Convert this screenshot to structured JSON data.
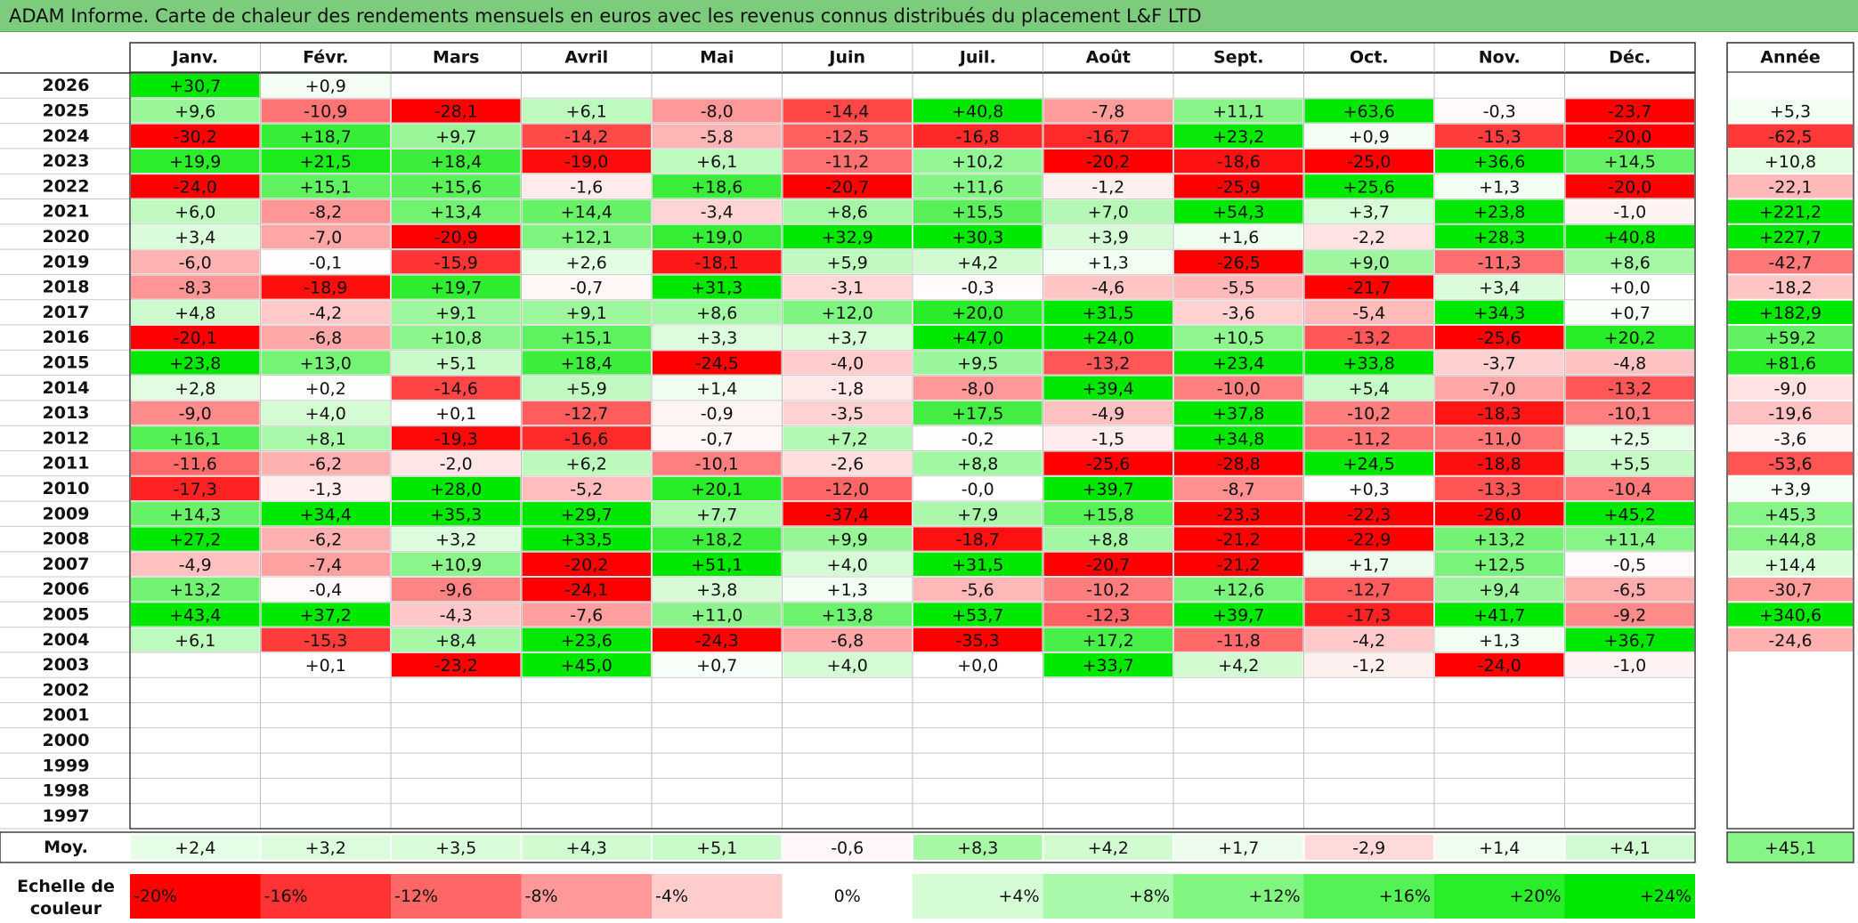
{
  "title": "ADAM Informe. Carte de chaleur des rendements mensuels en euros avec les revenus connus distribués du placement L&F LTD",
  "chart_data": {
    "type": "heatmap",
    "title": "ADAM Informe. Carte de chaleur des rendements mensuels en euros avec les revenus connus distribués du placement L&F LTD",
    "columns": [
      "Janv.",
      "Févr.",
      "Mars",
      "Avril",
      "Mai",
      "Juin",
      "Juil.",
      "Août",
      "Sept.",
      "Oct.",
      "Nov.",
      "Déc."
    ],
    "annual_header": "Année",
    "rows": [
      {
        "year": "2026",
        "values": [
          "+30,7",
          "+0,9",
          "",
          "",
          "",
          "",
          "",
          "",
          "",
          "",
          "",
          ""
        ],
        "annual": ""
      },
      {
        "year": "2025",
        "values": [
          "+9,6",
          "-10,9",
          "-28,1",
          "+6,1",
          "-8,0",
          "-14,4",
          "+40,8",
          "-7,8",
          "+11,1",
          "+63,6",
          "-0,3",
          "-23,7"
        ],
        "annual": "+5,3"
      },
      {
        "year": "2024",
        "values": [
          "-30,2",
          "+18,7",
          "+9,7",
          "-14,2",
          "-5,8",
          "-12,5",
          "-16,8",
          "-16,7",
          "+23,2",
          "+0,9",
          "-15,3",
          "-20,0"
        ],
        "annual": "-62,5"
      },
      {
        "year": "2023",
        "values": [
          "+19,9",
          "+21,5",
          "+18,4",
          "-19,0",
          "+6,1",
          "-11,2",
          "+10,2",
          "-20,2",
          "-18,6",
          "-25,0",
          "+36,6",
          "+14,5"
        ],
        "annual": "+10,8"
      },
      {
        "year": "2022",
        "values": [
          "-24,0",
          "+15,1",
          "+15,6",
          "-1,6",
          "+18,6",
          "-20,7",
          "+11,6",
          "-1,2",
          "-25,9",
          "+25,6",
          "+1,3",
          "-20,0"
        ],
        "annual": "-22,1"
      },
      {
        "year": "2021",
        "values": [
          "+6,0",
          "-8,2",
          "+13,4",
          "+14,4",
          "-3,4",
          "+8,6",
          "+15,5",
          "+7,0",
          "+54,3",
          "+3,7",
          "+23,8",
          "-1,0"
        ],
        "annual": "+221,2"
      },
      {
        "year": "2020",
        "values": [
          "+3,4",
          "-7,0",
          "-20,9",
          "+12,1",
          "+19,0",
          "+32,9",
          "+30,3",
          "+3,9",
          "+1,6",
          "-2,2",
          "+28,3",
          "+40,8"
        ],
        "annual": "+227,7"
      },
      {
        "year": "2019",
        "values": [
          "-6,0",
          "-0,1",
          "-15,9",
          "+2,6",
          "-18,1",
          "+5,9",
          "+4,2",
          "+1,3",
          "-26,5",
          "+9,0",
          "-11,3",
          "+8,6"
        ],
        "annual": "-42,7"
      },
      {
        "year": "2018",
        "values": [
          "-8,3",
          "-18,9",
          "+19,7",
          "-0,7",
          "+31,3",
          "-3,1",
          "-0,3",
          "-4,6",
          "-5,5",
          "-21,7",
          "+3,4",
          "+0,0"
        ],
        "annual": "-18,2"
      },
      {
        "year": "2017",
        "values": [
          "+4,8",
          "-4,2",
          "+9,1",
          "+9,1",
          "+8,6",
          "+12,0",
          "+20,0",
          "+31,5",
          "-3,6",
          "-5,4",
          "+34,3",
          "+0,7"
        ],
        "annual": "+182,9"
      },
      {
        "year": "2016",
        "values": [
          "-20,1",
          "-6,8",
          "+10,8",
          "+15,1",
          "+3,3",
          "+3,7",
          "+47,0",
          "+24,0",
          "+10,5",
          "-13,2",
          "-25,6",
          "+20,2"
        ],
        "annual": "+59,2"
      },
      {
        "year": "2015",
        "values": [
          "+23,8",
          "+13,0",
          "+5,1",
          "+18,4",
          "-24,5",
          "-4,0",
          "+9,5",
          "-13,2",
          "+23,4",
          "+33,8",
          "-3,7",
          "-4,8"
        ],
        "annual": "+81,6"
      },
      {
        "year": "2014",
        "values": [
          "+2,8",
          "+0,2",
          "-14,6",
          "+5,9",
          "+1,4",
          "-1,8",
          "-8,0",
          "+39,4",
          "-10,0",
          "+5,4",
          "-7,0",
          "-13,2"
        ],
        "annual": "-9,0"
      },
      {
        "year": "2013",
        "values": [
          "-9,0",
          "+4,0",
          "+0,1",
          "-12,7",
          "-0,9",
          "-3,5",
          "+17,5",
          "-4,9",
          "+37,8",
          "-10,2",
          "-18,3",
          "-10,1"
        ],
        "annual": "-19,6"
      },
      {
        "year": "2012",
        "values": [
          "+16,1",
          "+8,1",
          "-19,3",
          "-16,6",
          "-0,7",
          "+7,2",
          "-0,2",
          "-1,5",
          "+34,8",
          "-11,2",
          "-11,0",
          "+2,5"
        ],
        "annual": "-3,6"
      },
      {
        "year": "2011",
        "values": [
          "-11,6",
          "-6,2",
          "-2,0",
          "+6,2",
          "-10,1",
          "-2,6",
          "+8,8",
          "-25,6",
          "-28,8",
          "+24,5",
          "-18,8",
          "+5,5"
        ],
        "annual": "-53,6"
      },
      {
        "year": "2010",
        "values": [
          "-17,3",
          "-1,3",
          "+28,0",
          "-5,2",
          "+20,1",
          "-12,0",
          "-0,0",
          "+39,7",
          "-8,7",
          "+0,3",
          "-13,3",
          "-10,4"
        ],
        "annual": "+3,9"
      },
      {
        "year": "2009",
        "values": [
          "+14,3",
          "+34,4",
          "+35,3",
          "+29,7",
          "+7,7",
          "-37,4",
          "+7,9",
          "+15,8",
          "-23,3",
          "-22,3",
          "-26,0",
          "+45,2"
        ],
        "annual": "+45,3"
      },
      {
        "year": "2008",
        "values": [
          "+27,2",
          "-6,2",
          "+3,2",
          "+33,5",
          "+18,2",
          "+9,9",
          "-18,7",
          "+8,8",
          "-21,2",
          "-22,9",
          "+13,2",
          "+11,4"
        ],
        "annual": "+44,8"
      },
      {
        "year": "2007",
        "values": [
          "-4,9",
          "-7,4",
          "+10,9",
          "-20,2",
          "+51,1",
          "+4,0",
          "+31,5",
          "-20,7",
          "-21,2",
          "+1,7",
          "+12,5",
          "-0,5"
        ],
        "annual": "+14,4"
      },
      {
        "year": "2006",
        "values": [
          "+13,2",
          "-0,4",
          "-9,6",
          "-24,1",
          "+3,8",
          "+1,3",
          "-5,6",
          "-10,2",
          "+12,6",
          "-12,7",
          "+9,4",
          "-6,5"
        ],
        "annual": "-30,7"
      },
      {
        "year": "2005",
        "values": [
          "+43,4",
          "+37,2",
          "-4,3",
          "-7,6",
          "+11,0",
          "+13,8",
          "+53,7",
          "-12,3",
          "+39,7",
          "-17,3",
          "+41,7",
          "-9,2"
        ],
        "annual": "+340,6"
      },
      {
        "year": "2004",
        "values": [
          "+6,1",
          "-15,3",
          "+8,4",
          "+23,6",
          "-24,3",
          "-6,8",
          "-35,3",
          "+17,2",
          "-11,8",
          "-4,2",
          "+1,3",
          "+36,7"
        ],
        "annual": "-24,6"
      },
      {
        "year": "2003",
        "values": [
          "",
          "+0,1",
          "-23,2",
          "+45,0",
          "+0,7",
          "+4,0",
          "+0,0",
          "+33,7",
          "+4,2",
          "-1,2",
          "-24,0",
          "-1,0"
        ],
        "annual": ""
      },
      {
        "year": "2002",
        "values": [
          "",
          "",
          "",
          "",
          "",
          "",
          "",
          "",
          "",
          "",
          "",
          ""
        ],
        "annual": ""
      },
      {
        "year": "2001",
        "values": [
          "",
          "",
          "",
          "",
          "",
          "",
          "",
          "",
          "",
          "",
          "",
          ""
        ],
        "annual": ""
      },
      {
        "year": "2000",
        "values": [
          "",
          "",
          "",
          "",
          "",
          "",
          "",
          "",
          "",
          "",
          "",
          ""
        ],
        "annual": ""
      },
      {
        "year": "1999",
        "values": [
          "",
          "",
          "",
          "",
          "",
          "",
          "",
          "",
          "",
          "",
          "",
          ""
        ],
        "annual": ""
      },
      {
        "year": "1998",
        "values": [
          "",
          "",
          "",
          "",
          "",
          "",
          "",
          "",
          "",
          "",
          "",
          ""
        ],
        "annual": ""
      },
      {
        "year": "1997",
        "values": [
          "",
          "",
          "",
          "",
          "",
          "",
          "",
          "",
          "",
          "",
          "",
          ""
        ],
        "annual": ""
      }
    ],
    "average": {
      "label": "Moy.",
      "values": [
        "+2,4",
        "+3,2",
        "+3,5",
        "+4,3",
        "+5,1",
        "-0,6",
        "+8,3",
        "+4,2",
        "+1,7",
        "-2,9",
        "+1,4",
        "+4,1"
      ],
      "annual": "+45,1"
    },
    "scale": {
      "label_lines": [
        "Echelle de",
        "couleur"
      ],
      "steps": [
        {
          "label": "-20%",
          "color": "#ff0000"
        },
        {
          "label": "-16%",
          "color": "#ff3333"
        },
        {
          "label": "-12%",
          "color": "#ff6666"
        },
        {
          "label": "-8%",
          "color": "#ff9999"
        },
        {
          "label": "-4%",
          "color": "#ffcccc"
        },
        {
          "label": "0%",
          "color": "#ffffff"
        },
        {
          "label": "+4%",
          "color": "#d5fcd5"
        },
        {
          "label": "+8%",
          "color": "#aaf8aa"
        },
        {
          "label": "+12%",
          "color": "#80f580"
        },
        {
          "label": "+16%",
          "color": "#55f255"
        },
        {
          "label": "+20%",
          "color": "#2bee2b"
        },
        {
          "label": "+24%",
          "color": "#00e800"
        }
      ]
    }
  }
}
